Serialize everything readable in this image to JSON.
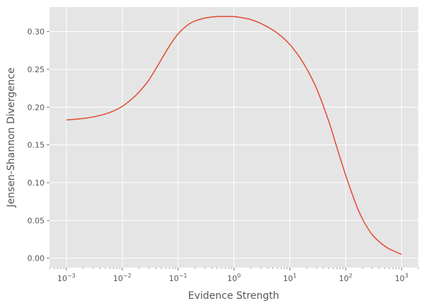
{
  "chart_data": {
    "type": "line",
    "title": "",
    "xlabel": "Evidence Strength",
    "ylabel": "Jensen-Shannon Divergence",
    "x_scale": "log",
    "xlim": [
      0.0005,
      2000
    ],
    "ylim": [
      -0.0125,
      0.3325
    ],
    "grid": true,
    "background": "#e5e5e5",
    "grid_color": "#ffffff",
    "line_color": "#e24a33",
    "text_color": "#555555",
    "x_ticks": [
      {
        "value": 0.001,
        "base": "10",
        "exp": "−3"
      },
      {
        "value": 0.01,
        "base": "10",
        "exp": "−2"
      },
      {
        "value": 0.1,
        "base": "10",
        "exp": "−1"
      },
      {
        "value": 1,
        "base": "10",
        "exp": "0"
      },
      {
        "value": 10,
        "base": "10",
        "exp": "1"
      },
      {
        "value": 100,
        "base": "10",
        "exp": "2"
      },
      {
        "value": 1000,
        "base": "10",
        "exp": "3"
      }
    ],
    "y_ticks": [
      {
        "value": 0.0,
        "label": "0.00"
      },
      {
        "value": 0.05,
        "label": "0.05"
      },
      {
        "value": 0.1,
        "label": "0.10"
      },
      {
        "value": 0.15,
        "label": "0.15"
      },
      {
        "value": 0.2,
        "label": "0.20"
      },
      {
        "value": 0.25,
        "label": "0.25"
      },
      {
        "value": 0.3,
        "label": "0.30"
      }
    ],
    "series": [
      {
        "x": [
          0.001,
          0.002,
          0.003,
          0.005,
          0.007,
          0.01,
          0.015,
          0.02,
          0.03,
          0.05,
          0.07,
          0.1,
          0.15,
          0.2,
          0.3,
          0.5,
          0.7,
          1,
          1.5,
          2,
          3,
          5,
          7,
          10,
          15,
          20,
          30,
          50,
          70,
          100,
          150,
          200,
          300,
          500,
          700,
          1000
        ],
        "y": [
          0.183,
          0.185,
          0.187,
          0.191,
          0.195,
          0.201,
          0.211,
          0.22,
          0.236,
          0.263,
          0.281,
          0.297,
          0.309,
          0.314,
          0.318,
          0.32,
          0.32,
          0.32,
          0.318,
          0.316,
          0.311,
          0.302,
          0.294,
          0.283,
          0.266,
          0.251,
          0.225,
          0.181,
          0.146,
          0.11,
          0.073,
          0.052,
          0.031,
          0.016,
          0.01,
          0.005
        ]
      }
    ]
  }
}
